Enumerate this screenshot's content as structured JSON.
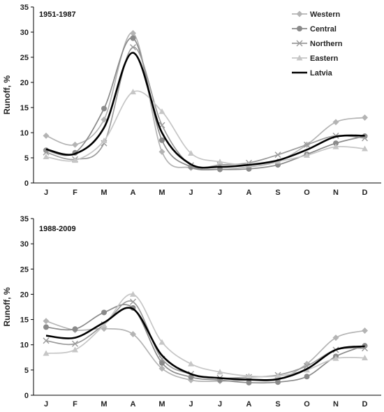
{
  "chart_data": [
    {
      "type": "line",
      "title": "1951-1987",
      "ylabel": "Runoff, %",
      "xlabel": "",
      "ylim": [
        0,
        35
      ],
      "yticks": [
        0,
        5,
        10,
        15,
        20,
        25,
        30,
        35
      ],
      "categories": [
        "J",
        "F",
        "M",
        "A",
        "M",
        "J",
        "J",
        "A",
        "S",
        "O",
        "N",
        "D"
      ],
      "legend": {
        "position": "top-right"
      },
      "series": [
        {
          "name": "Western",
          "color": "#b4b4b4",
          "marker": "diamond",
          "values": [
            9.4,
            7.6,
            12.6,
            29.8,
            6.2,
            3.0,
            2.7,
            3.2,
            4.3,
            7.6,
            12.1,
            13.0
          ]
        },
        {
          "name": "Central",
          "color": "#8a8a8a",
          "marker": "circle",
          "values": [
            6.5,
            6.0,
            14.8,
            28.8,
            8.5,
            3.2,
            2.7,
            2.8,
            3.6,
            5.7,
            7.9,
            9.3
          ]
        },
        {
          "name": "Northern",
          "color": "#9a9a9a",
          "marker": "x",
          "values": [
            6.1,
            4.7,
            7.9,
            27.0,
            11.5,
            3.5,
            3.6,
            4.0,
            5.6,
            7.6,
            9.4,
            8.9
          ]
        },
        {
          "name": "Eastern",
          "color": "#c6c6c6",
          "marker": "triangle",
          "values": [
            5.2,
            4.5,
            8.4,
            18.1,
            14.2,
            5.9,
            4.2,
            3.6,
            4.3,
            5.5,
            7.2,
            6.8
          ]
        },
        {
          "name": "Latvia",
          "color": "#000000",
          "marker": "none",
          "values": [
            6.7,
            5.8,
            11.0,
            25.9,
            10.0,
            3.7,
            3.2,
            3.6,
            4.5,
            6.6,
            9.2,
            9.4
          ]
        }
      ]
    },
    {
      "type": "line",
      "title": "1988-2009",
      "ylabel": "Runoff, %",
      "xlabel": "",
      "ylim": [
        0,
        35
      ],
      "yticks": [
        0,
        5,
        10,
        15,
        20,
        25,
        30,
        35
      ],
      "categories": [
        "J",
        "F",
        "M",
        "A",
        "M",
        "J",
        "J",
        "A",
        "S",
        "O",
        "N",
        "D"
      ],
      "series": [
        {
          "name": "Western",
          "color": "#b4b4b4",
          "marker": "diamond",
          "values": [
            14.7,
            12.9,
            13.2,
            12.1,
            5.3,
            3.0,
            2.8,
            3.0,
            3.1,
            6.2,
            11.4,
            12.8
          ]
        },
        {
          "name": "Central",
          "color": "#8a8a8a",
          "marker": "circle",
          "values": [
            13.5,
            13.1,
            16.4,
            17.3,
            6.4,
            3.6,
            3.0,
            2.5,
            2.6,
            3.7,
            7.7,
            9.8
          ]
        },
        {
          "name": "Northern",
          "color": "#9a9a9a",
          "marker": "x",
          "values": [
            10.8,
            10.2,
            14.0,
            18.5,
            7.2,
            4.2,
            3.4,
            3.6,
            4.0,
            5.8,
            9.0,
            9.3
          ]
        },
        {
          "name": "Eastern",
          "color": "#c6c6c6",
          "marker": "triangle",
          "values": [
            8.3,
            9.0,
            13.9,
            20.0,
            10.5,
            6.2,
            4.6,
            3.8,
            3.8,
            5.0,
            7.3,
            7.4
          ]
        },
        {
          "name": "Latvia",
          "color": "#000000",
          "marker": "none",
          "values": [
            11.8,
            11.4,
            14.4,
            17.1,
            7.9,
            4.2,
            3.4,
            3.1,
            3.2,
            5.2,
            9.0,
            9.7
          ]
        }
      ]
    }
  ]
}
